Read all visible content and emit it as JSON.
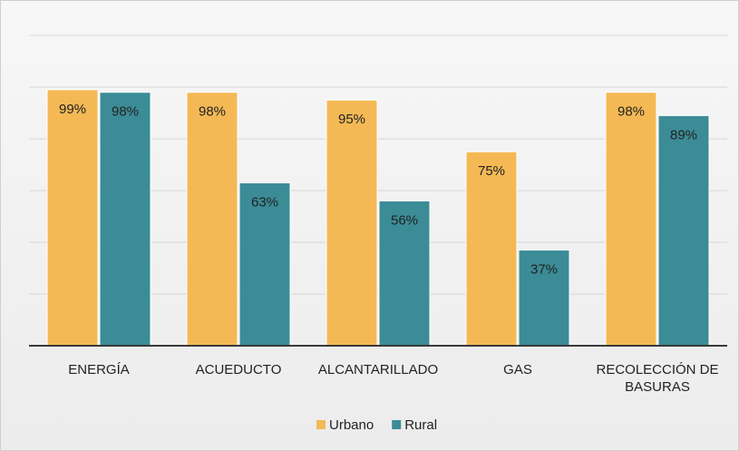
{
  "chart_data": {
    "type": "bar",
    "categories": [
      "ENERGÍA",
      "ACUEDUCTO",
      "ALCANTARILLADO",
      "GAS",
      "RECOLECCIÓN DE BASURAS"
    ],
    "series": [
      {
        "name": "Urbano",
        "color": "#f4b955",
        "values": [
          99,
          98,
          95,
          75,
          98
        ],
        "value_labels": [
          "99%",
          "98%",
          "95%",
          "75%",
          "98%"
        ]
      },
      {
        "name": "Rural",
        "color": "#3b8c96",
        "values": [
          98,
          63,
          56,
          37,
          89
        ],
        "value_labels": [
          "98%",
          "63%",
          "56%",
          "37%",
          "89%"
        ]
      }
    ],
    "ylim": [
      0,
      120
    ],
    "yticks": [
      0,
      20,
      40,
      60,
      80,
      100,
      120
    ],
    "grid": true,
    "legend": "bottom"
  }
}
